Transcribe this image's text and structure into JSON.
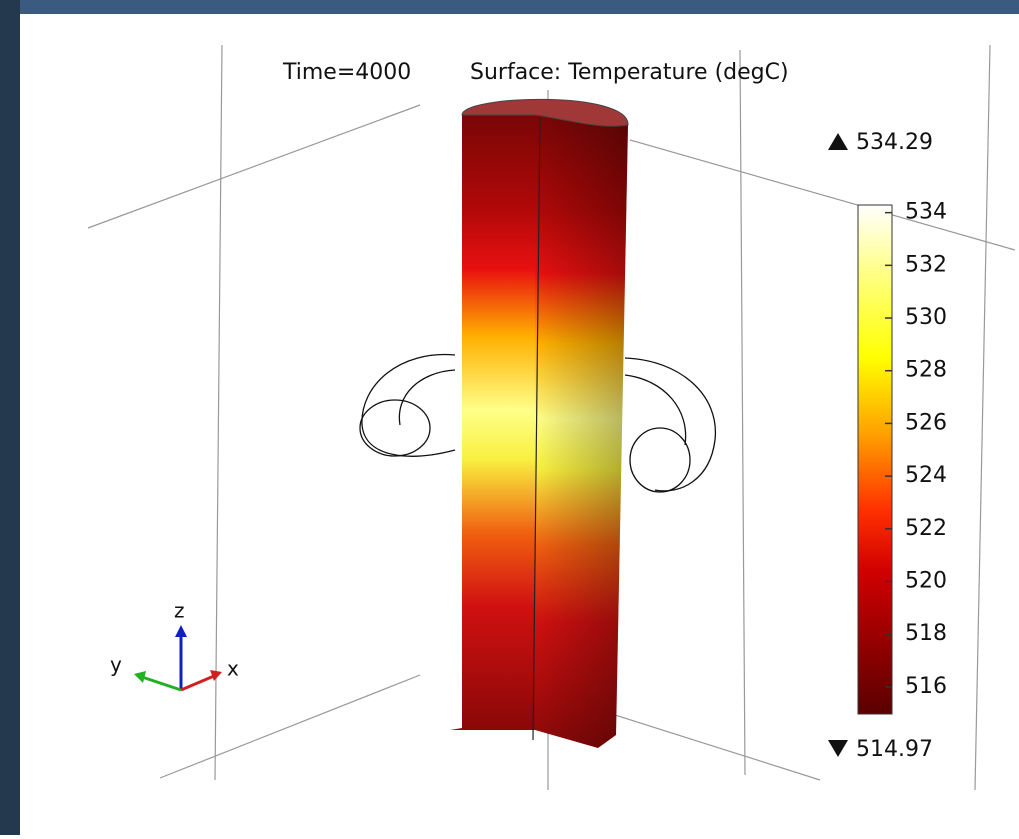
{
  "title": {
    "time": "Time=4000",
    "surface": "Surface: Temperature (degC)"
  },
  "colorbar": {
    "max": 534.29,
    "min": 514.97,
    "ticks": [
      516,
      518,
      520,
      522,
      524,
      526,
      528,
      530,
      532,
      534
    ]
  },
  "axes": {
    "z": "z",
    "y": "y",
    "x": "x"
  }
}
